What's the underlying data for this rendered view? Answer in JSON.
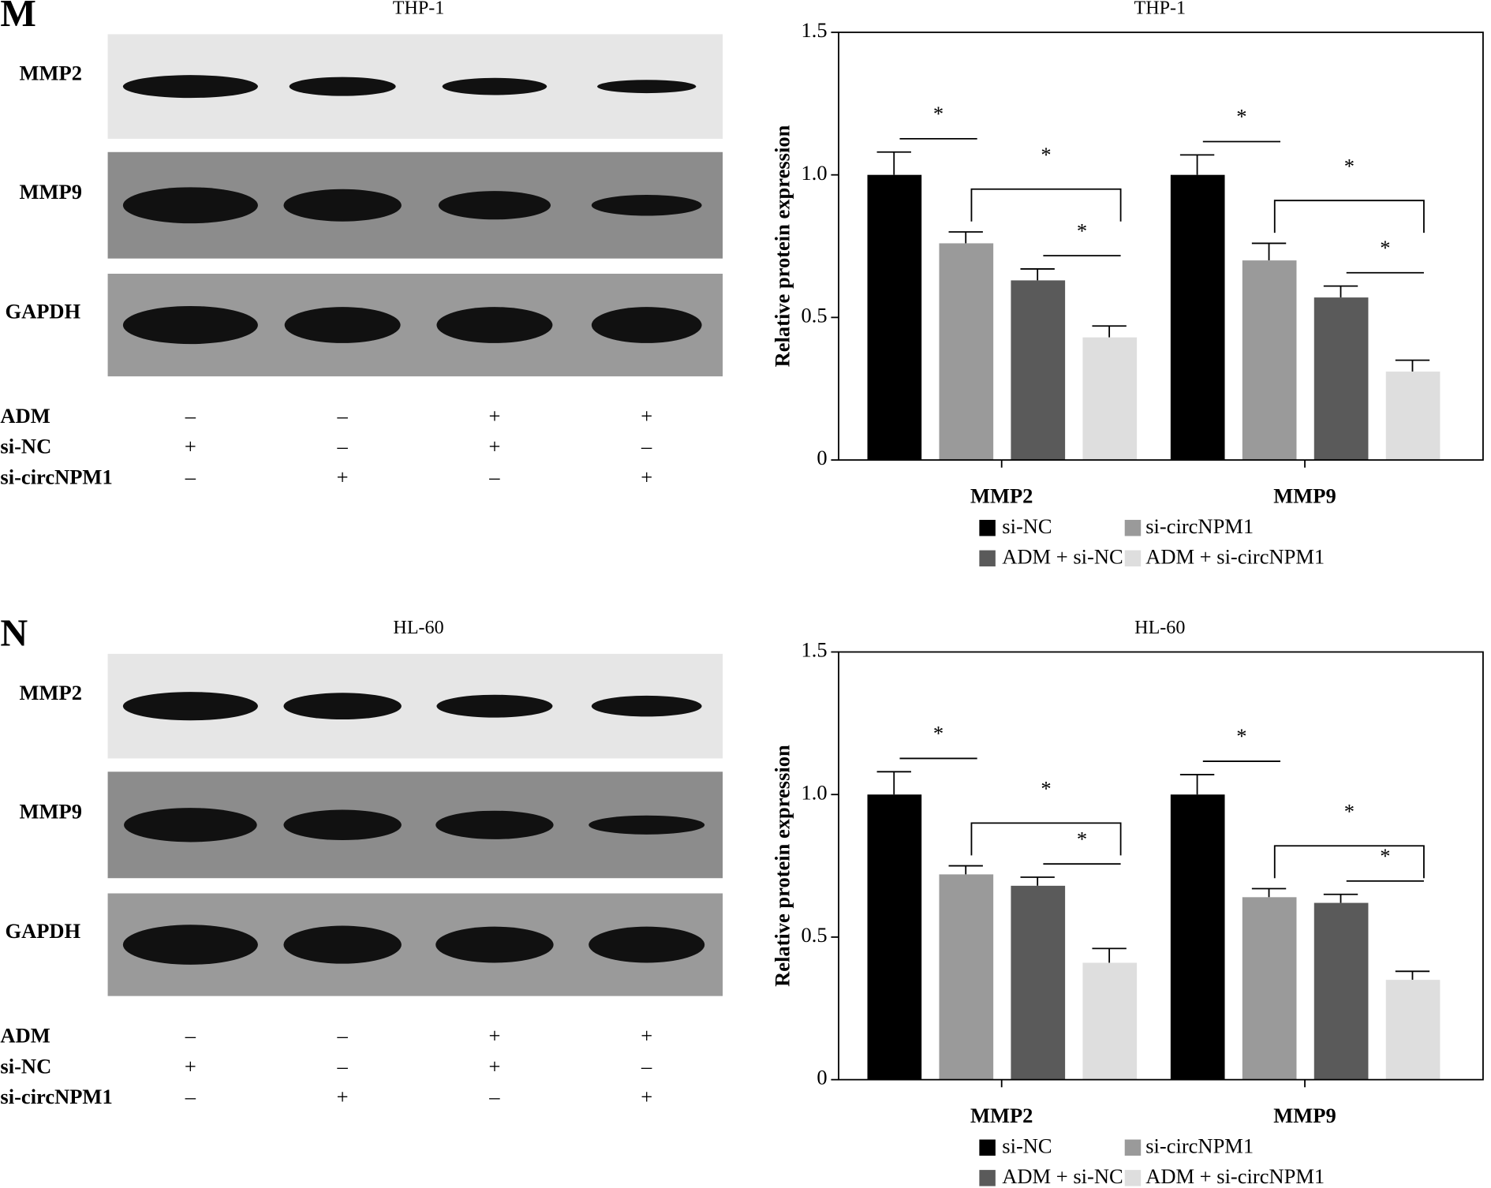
{
  "blots": [
    {
      "panel": "M",
      "title": "THP-1",
      "bands": [
        "MMP2",
        "MMP9",
        "GAPDH"
      ],
      "conditions": [
        {
          "name": "ADM",
          "signs": [
            "–",
            "–",
            "+",
            "+"
          ]
        },
        {
          "name": "si-NC",
          "signs": [
            "+",
            "–",
            "+",
            "–"
          ]
        },
        {
          "name": "si-circNPM1",
          "signs": [
            "–",
            "+",
            "–",
            "+"
          ]
        }
      ]
    },
    {
      "panel": "N",
      "title": "HL-60",
      "bands": [
        "MMP2",
        "MMP9",
        "GAPDH"
      ],
      "conditions": [
        {
          "name": "ADM",
          "signs": [
            "–",
            "–",
            "+",
            "+"
          ]
        },
        {
          "name": "si-NC",
          "signs": [
            "+",
            "–",
            "+",
            "–"
          ]
        },
        {
          "name": "si-circNPM1",
          "signs": [
            "–",
            "+",
            "–",
            "+"
          ]
        }
      ]
    }
  ],
  "chart_data": [
    {
      "type": "bar",
      "title": "THP-1",
      "ylabel": "Relative protein expression",
      "categories": [
        "MMP2",
        "MMP9"
      ],
      "series": [
        {
          "name": "si-NC",
          "color": "#000000",
          "values": [
            1.0,
            1.0
          ],
          "errors": [
            0.08,
            0.07
          ]
        },
        {
          "name": "si-circNPM1",
          "color": "#9a9a9a",
          "values": [
            0.76,
            0.7
          ],
          "errors": [
            0.04,
            0.06
          ]
        },
        {
          "name": "ADM + si-NC",
          "color": "#5a5a5a",
          "values": [
            0.63,
            0.57
          ],
          "errors": [
            0.04,
            0.04
          ]
        },
        {
          "name": "ADM + si-circNPM1",
          "color": "#dedede",
          "values": [
            0.43,
            0.31
          ],
          "errors": [
            0.04,
            0.04
          ]
        }
      ],
      "ylim": [
        0,
        1.5
      ],
      "yticks": [
        0,
        0.5,
        {
          "value": 1,
          "label": "1.0"
        },
        1.5
      ],
      "annotations": [
        "*",
        "*",
        "*",
        "*",
        "*",
        "*"
      ]
    },
    {
      "type": "bar",
      "title": "HL-60",
      "ylabel": "Relative protein expression",
      "categories": [
        "MMP2",
        "MMP9"
      ],
      "series": [
        {
          "name": "si-NC",
          "color": "#000000",
          "values": [
            1.0,
            1.0
          ],
          "errors": [
            0.08,
            0.07
          ]
        },
        {
          "name": "si-circNPM1",
          "color": "#9a9a9a",
          "values": [
            0.72,
            0.64
          ],
          "errors": [
            0.03,
            0.03
          ]
        },
        {
          "name": "ADM + si-NC",
          "color": "#5a5a5a",
          "values": [
            0.68,
            0.62
          ],
          "errors": [
            0.03,
            0.03
          ]
        },
        {
          "name": "ADM + si-circNPM1",
          "color": "#dedede",
          "values": [
            0.41,
            0.35
          ],
          "errors": [
            0.05,
            0.03
          ]
        }
      ],
      "ylim": [
        0,
        1.5
      ],
      "yticks": [
        0,
        0.5,
        {
          "value": 1,
          "label": "1.0"
        },
        1.5
      ],
      "annotations": [
        "*",
        "*",
        "*",
        "*",
        "*",
        "*"
      ]
    }
  ]
}
